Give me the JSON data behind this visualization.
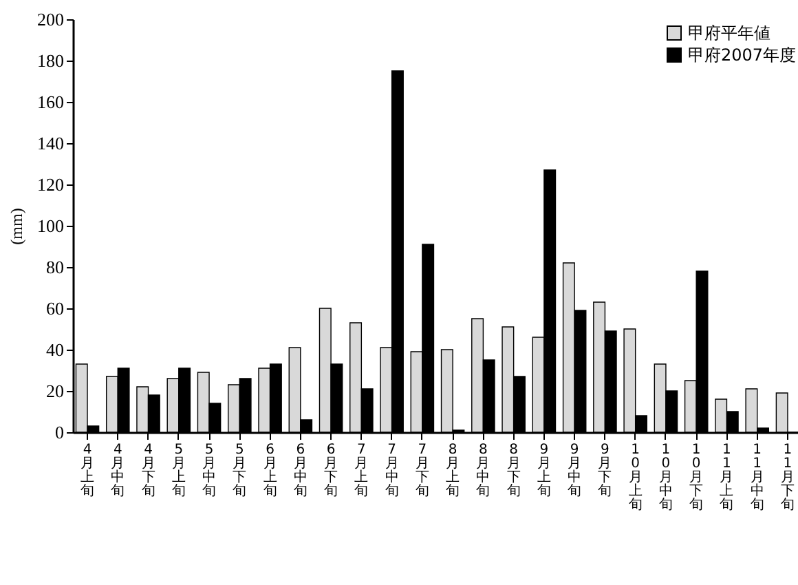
{
  "chart_data": {
    "type": "bar",
    "ylabel": "(mm)",
    "categories": [
      "4月上旬",
      "4月中旬",
      "4月下旬",
      "5月上旬",
      "5月中旬",
      "5月下旬",
      "6月上旬",
      "6月中旬",
      "6月下旬",
      "7月上旬",
      "7月中旬",
      "7月下旬",
      "8月上旬",
      "8月中旬",
      "8月下旬",
      "9月上旬",
      "9月中旬",
      "9月下旬",
      "10月上旬",
      "10月中旬",
      "10月下旬",
      "11月上旬",
      "11月中旬",
      "11月下旬"
    ],
    "series": [
      {
        "name": "甲府平年値",
        "color": "#d9d9d9",
        "values": [
          33,
          27,
          22,
          26,
          29,
          23,
          31,
          41,
          60,
          53,
          41,
          39,
          40,
          55,
          51,
          46,
          82,
          63,
          50,
          33,
          25,
          16,
          21,
          19
        ]
      },
      {
        "name": "甲府2007年度",
        "color": "#000000",
        "values": [
          3,
          31,
          18,
          31,
          14,
          26,
          33,
          6,
          33,
          21,
          175,
          91,
          1,
          35,
          27,
          127,
          59,
          49,
          8,
          20,
          78,
          10,
          2,
          0
        ]
      }
    ],
    "ylim": [
      0,
      200
    ],
    "yticks": [
      0,
      20,
      40,
      60,
      80,
      100,
      120,
      140,
      160,
      180,
      200
    ],
    "grid": false,
    "legend": "top right"
  }
}
